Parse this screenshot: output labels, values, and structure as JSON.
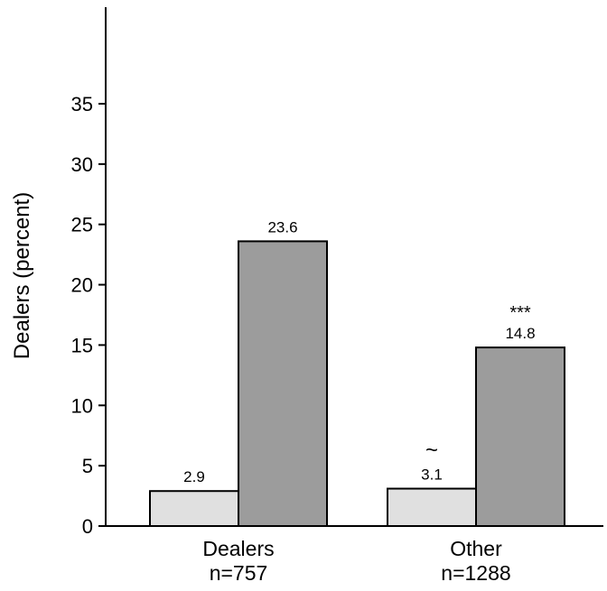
{
  "chart_data": {
    "type": "bar",
    "title": "",
    "xlabel": "",
    "ylabel": "Dealers (percent)",
    "ylim": [
      0,
      43
    ],
    "yticks": [
      0,
      5,
      10,
      15,
      20,
      25,
      30,
      35
    ],
    "grid": false,
    "legend": "none",
    "categories": [
      {
        "name": "Dealers",
        "sub": "n=757"
      },
      {
        "name": "Other",
        "sub": "n=1288"
      }
    ],
    "series": [
      {
        "color": "#e0e0e0",
        "values": [
          2.9,
          3.1
        ],
        "labels": [
          "2.9",
          "3.1"
        ]
      },
      {
        "color": "#9c9c9c",
        "values": [
          23.6,
          14.8
        ],
        "labels": [
          "23.6",
          "14.8"
        ]
      }
    ],
    "annotations": [
      {
        "category": 1,
        "series": 0,
        "text": "~"
      },
      {
        "category": 1,
        "series": 1,
        "text": "***"
      }
    ]
  }
}
